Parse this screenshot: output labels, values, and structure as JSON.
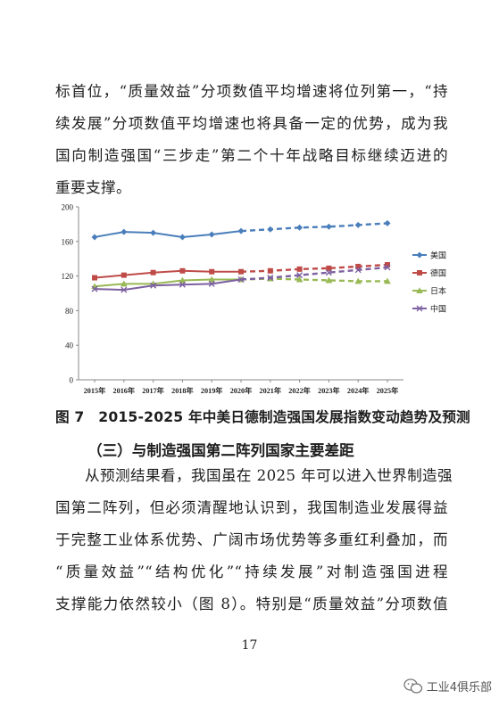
{
  "paragraph1": [
    "标首位，“质量效益”分项数值平均增速将位列第一，“持",
    "续发展”分项数值平均增速也将具备一定的优势，成为我",
    "国向制造强国“三步走”第二个十年战略目标继续迈进的",
    "重要支撑。"
  ],
  "chart_data": {
    "type": "line",
    "categories": [
      "2015年",
      "2016年",
      "2017年",
      "2018年",
      "2019年",
      "2020年",
      "2021年",
      "2022年",
      "2023年",
      "2024年",
      "2025年"
    ],
    "ylim": [
      0,
      200
    ],
    "yticks": [
      "0",
      "40",
      "80",
      "120",
      "160",
      "200"
    ],
    "grid": false,
    "legend_position": "right",
    "forecast_from_index": 5,
    "series": [
      {
        "name": "美国",
        "color": "#4a7ebb",
        "marker": "diamond",
        "values": [
          165,
          171,
          170,
          165,
          168,
          172,
          174,
          176,
          177,
          179,
          181
        ]
      },
      {
        "name": "德国",
        "color": "#be4b48",
        "marker": "square",
        "values": [
          118,
          121,
          124,
          126,
          125,
          125,
          126,
          128,
          129,
          131,
          133
        ]
      },
      {
        "name": "日本",
        "color": "#98b954",
        "marker": "triangle",
        "values": [
          108,
          111,
          111,
          115,
          116,
          116,
          117,
          116,
          115,
          114,
          114
        ]
      },
      {
        "name": "中国",
        "color": "#7d60a0",
        "marker": "x",
        "values": [
          105,
          104,
          109,
          110,
          111,
          116,
          118,
          121,
          124,
          127,
          130
        ]
      }
    ]
  },
  "caption": "图 7　2015-2025 年中美日德制造强国发展指数变动趋势及预测",
  "heading": "（三）与制造强国第二阵列国家主要差距",
  "paragraph2": [
    "从预测结果看，我国虽在 2025 年可以进入世界制造强",
    "国第二阵列，但必须清醒地认识到，我国制造业发展得益",
    "于完整工业体系优势、广阔市场优势等多重红利叠加，而",
    "“质量效益”“结构优化”“持续发展”对制造强国进程",
    "支撑能力依然较小（图 8）。特别是“质量效益”分项数值"
  ],
  "page_number": "17",
  "watermark": {
    "text": "工业4俱乐部",
    "icon": "wechat-icon"
  }
}
